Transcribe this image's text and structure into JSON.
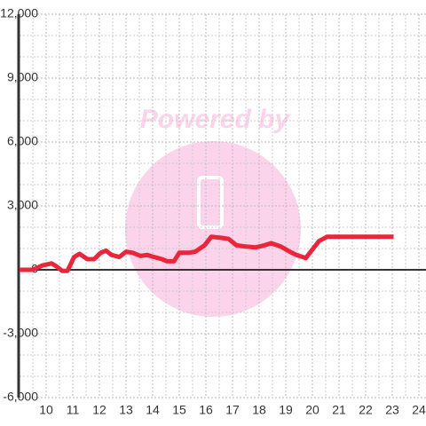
{
  "chart_data": {
    "type": "line",
    "watermark": "Powered by",
    "x": [
      9,
      9.5,
      9.85,
      10.2,
      10.4,
      10.6,
      10.8,
      11.05,
      11.25,
      11.55,
      11.8,
      12.05,
      12.25,
      12.45,
      12.75,
      13,
      13.25,
      13.55,
      13.8,
      14.05,
      14.35,
      14.55,
      14.8,
      15,
      15.35,
      15.6,
      15.95,
      16.2,
      16.6,
      16.85,
      17.15,
      17.45,
      17.85,
      18.2,
      18.45,
      18.8,
      19.15,
      19.4,
      19.75,
      20,
      20.25,
      20.55,
      20.95,
      23.05
    ],
    "series": [
      {
        "color": "#e8273d",
        "values": [
          0,
          0,
          200,
          300,
          150,
          -50,
          -50,
          600,
          750,
          500,
          500,
          800,
          900,
          700,
          600,
          850,
          800,
          650,
          700,
          600,
          500,
          400,
          400,
          800,
          800,
          850,
          1150,
          1550,
          1500,
          1450,
          1150,
          1100,
          1050,
          1150,
          1250,
          1100,
          850,
          700,
          550,
          950,
          1350,
          1550,
          1550,
          1550
        ]
      }
    ],
    "xlim": [
      9,
      24.3
    ],
    "xticks": [
      10,
      11,
      12,
      13,
      14,
      15,
      16,
      17,
      18,
      19,
      20,
      21,
      22,
      23,
      24
    ],
    "x_minor_ticks": [
      9.5,
      10.5,
      11.5,
      12.5,
      13.5,
      14.5,
      15.5,
      16.5,
      17.5,
      18.5,
      19.5,
      20.5,
      21.5,
      22.5,
      23.5
    ],
    "ylim": [
      -6000,
      12000
    ],
    "yticks": [
      {
        "value": -6000,
        "label": "-6,000"
      },
      {
        "value": -3000,
        "label": "-3,000"
      },
      0,
      {
        "value": 3000,
        "label": "3,000"
      },
      {
        "value": 6000,
        "label": "6,000"
      },
      {
        "value": 9000,
        "label": "9,000"
      },
      {
        "value": 12000,
        "label": "12,000"
      }
    ],
    "y_minor_ticks": [
      -5000,
      -4000,
      -2000,
      -1000,
      1000,
      2000,
      4000,
      5000,
      7000,
      8000,
      10000,
      11000
    ],
    "grid": true
  }
}
